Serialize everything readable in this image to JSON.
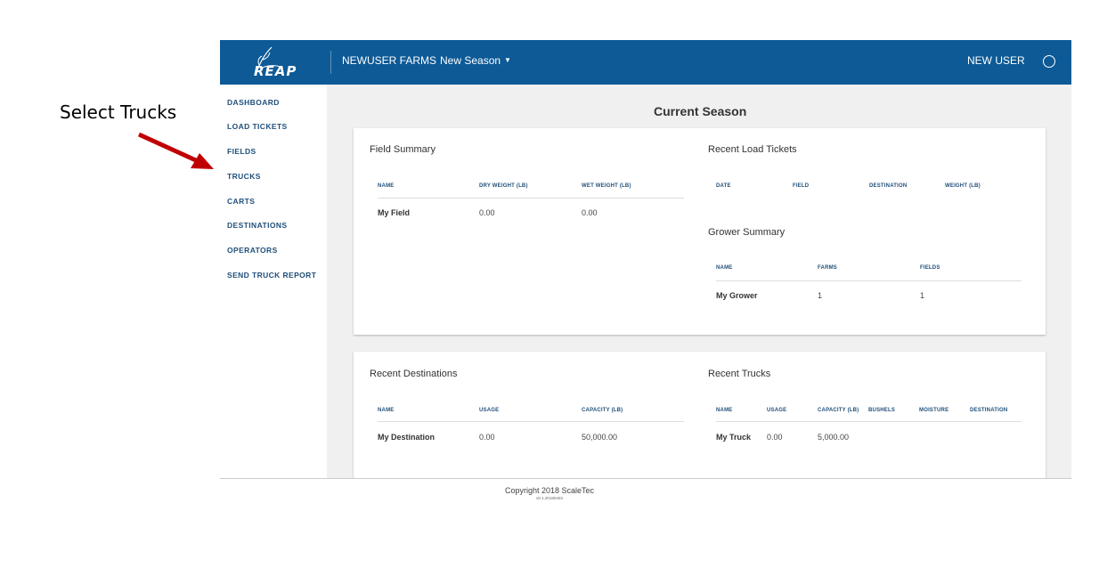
{
  "annotation": {
    "text": "Select Trucks"
  },
  "header": {
    "logo_text": "REAP",
    "farm_name": "NEWUSER FARMS",
    "season_label": "New Season",
    "user_name": "NEW USER"
  },
  "sidebar": {
    "items": [
      {
        "label": "DASHBOARD"
      },
      {
        "label": "LOAD TICKETS"
      },
      {
        "label": "FIELDS"
      },
      {
        "label": "TRUCKS"
      },
      {
        "label": "CARTS"
      },
      {
        "label": "DESTINATIONS"
      },
      {
        "label": "OPERATORS"
      },
      {
        "label": "SEND TRUCK REPORT"
      }
    ]
  },
  "main": {
    "title": "Current Season",
    "field_summary": {
      "title": "Field Summary",
      "columns": [
        "NAME",
        "DRY WEIGHT (LB)",
        "WET WEIGHT (LB)"
      ],
      "rows": [
        [
          "My Field",
          "0.00",
          "0.00"
        ]
      ]
    },
    "recent_load_tickets": {
      "title": "Recent Load Tickets",
      "columns": [
        "DATE",
        "FIELD",
        "DESTINATION",
        "WEIGHT (LB)"
      ]
    },
    "grower_summary": {
      "title": "Grower Summary",
      "columns": [
        "NAME",
        "FARMS",
        "FIELDS"
      ],
      "rows": [
        [
          "My Grower",
          "1",
          "1"
        ]
      ]
    },
    "recent_destinations": {
      "title": "Recent Destinations",
      "columns": [
        "NAME",
        "USAGE",
        "CAPACITY (LB)"
      ],
      "rows": [
        [
          "My Destination",
          "0.00",
          "50,000.00"
        ]
      ]
    },
    "recent_trucks": {
      "title": "Recent Trucks",
      "columns": [
        "NAME",
        "USAGE",
        "CAPACITY (LB)",
        "BUSHELS",
        "MOISTURE",
        "DESTINATION"
      ],
      "rows": [
        [
          "My Truck",
          "0.00",
          "5,000.00"
        ]
      ]
    }
  },
  "footer": {
    "copyright": "Copyright 2018 ScaleTec",
    "version": "v0.1.20180403"
  },
  "colors": {
    "header_bg": "#0d5a96",
    "nav_text": "#1f4f7a",
    "arrow": "#c00000"
  }
}
